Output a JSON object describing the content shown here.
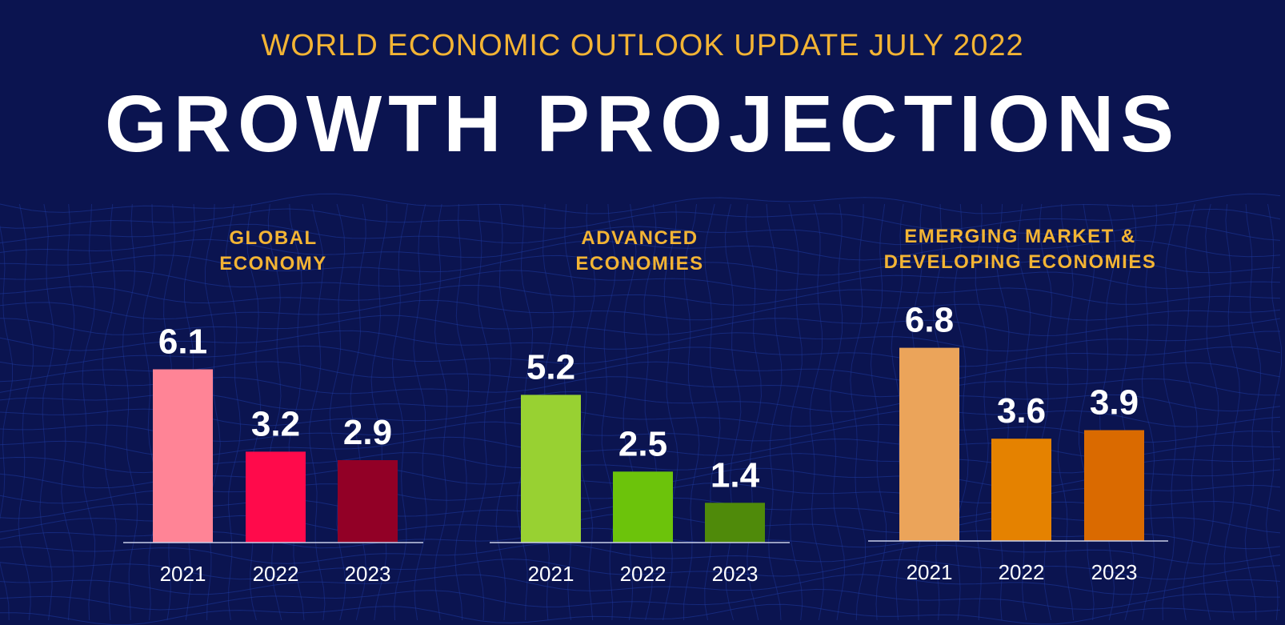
{
  "header": {
    "supertitle": "WORLD ECONOMIC OUTLOOK UPDATE JULY 2022",
    "title": "GROWTH PROJECTIONS"
  },
  "colors": {
    "background": "#0b1450",
    "grid": "#1f3aa0",
    "accent": "#f3b434",
    "text": "#ffffff",
    "baseline": "#c8cde8"
  },
  "chart_data": [
    {
      "type": "bar",
      "title": "GLOBAL\nECONOMY",
      "categories": [
        "2021",
        "2022",
        "2023"
      ],
      "values": [
        6.1,
        3.2,
        2.9
      ],
      "value_labels": [
        "6.1",
        "3.2",
        "2.9"
      ],
      "colors": [
        "#ff8496",
        "#ff0a4b",
        "#920026"
      ],
      "ylim": [
        0,
        6.8
      ],
      "grid": false,
      "legend": "none"
    },
    {
      "type": "bar",
      "title": "ADVANCED\nECONOMIES",
      "categories": [
        "2021",
        "2022",
        "2023"
      ],
      "values": [
        5.2,
        2.5,
        1.4
      ],
      "value_labels": [
        "5.2",
        "2.5",
        "1.4"
      ],
      "colors": [
        "#98d132",
        "#6cc30b",
        "#4f8a0a"
      ],
      "ylim": [
        0,
        6.8
      ],
      "grid": false,
      "legend": "none"
    },
    {
      "type": "bar",
      "title": "EMERGING MARKET &\nDEVELOPING ECONOMIES",
      "categories": [
        "2021",
        "2022",
        "2023"
      ],
      "values": [
        6.8,
        3.6,
        3.9
      ],
      "value_labels": [
        "6.8",
        "3.6",
        "3.9"
      ],
      "colors": [
        "#eba45a",
        "#e58200",
        "#da6a00"
      ],
      "ylim": [
        0,
        6.8
      ],
      "grid": false,
      "legend": "none"
    }
  ]
}
